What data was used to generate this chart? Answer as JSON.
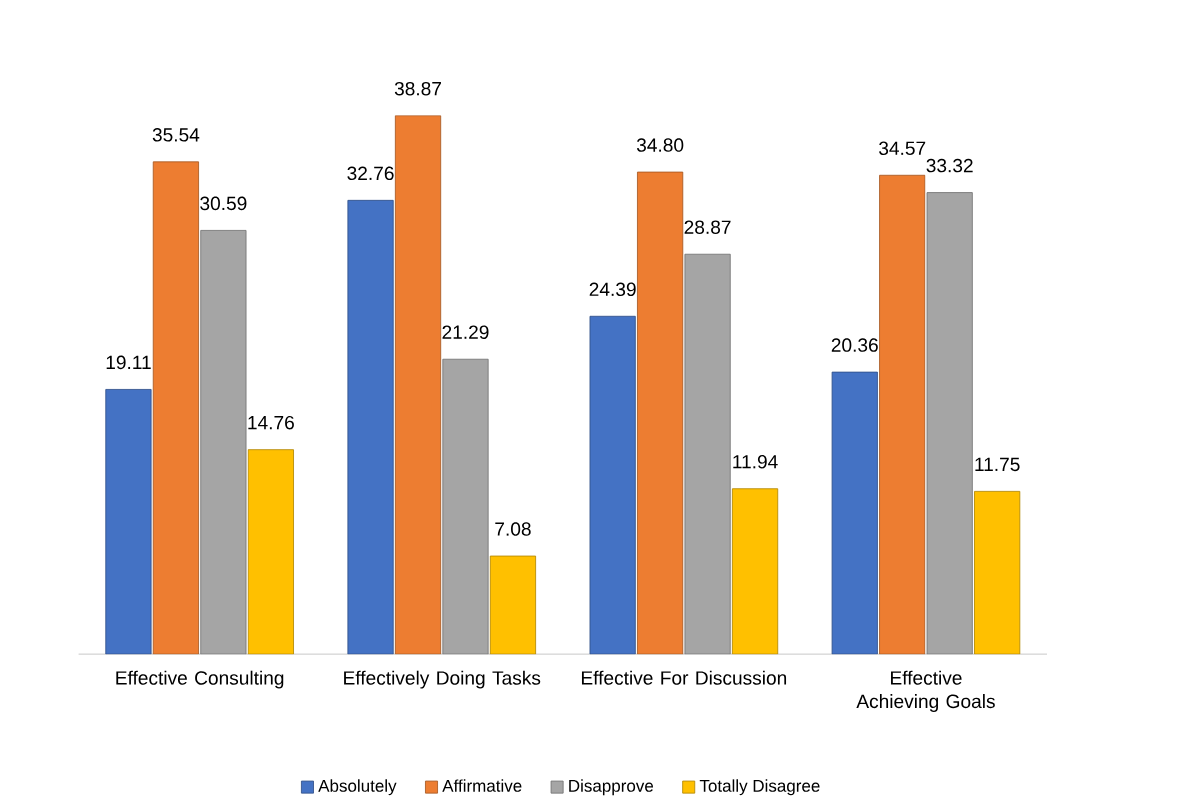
{
  "chart_data": {
    "type": "bar",
    "categories": [
      "Effective Consulting",
      "Effectively Doing Tasks",
      "Effective For Discussion",
      "Effective Achieving Goals"
    ],
    "series": [
      {
        "name": "Absolutely",
        "color": "#4472c4",
        "values": [
          19.11,
          32.76,
          24.39,
          20.36
        ],
        "value_labels": [
          "19.11",
          "32.76",
          "24.39",
          "20.36"
        ]
      },
      {
        "name": "Affirmative",
        "color": "#ed7d31",
        "values": [
          35.54,
          38.87,
          34.8,
          34.57
        ],
        "value_labels": [
          "35.54",
          "38.87",
          "34.80",
          "34.57"
        ]
      },
      {
        "name": "Disapprove",
        "color": "#a5a5a5",
        "values": [
          30.59,
          21.29,
          28.87,
          33.32
        ],
        "value_labels": [
          "30.59",
          "21.29",
          "28.87",
          "33.32"
        ]
      },
      {
        "name": "Totally Disagree",
        "color": "#ffc000",
        "values": [
          14.76,
          7.08,
          11.94,
          11.75
        ],
        "value_labels": [
          "14.76",
          "7.08",
          "11.94",
          "11.75"
        ]
      }
    ],
    "tick_labels": "x",
    "legend": "bottom"
  }
}
